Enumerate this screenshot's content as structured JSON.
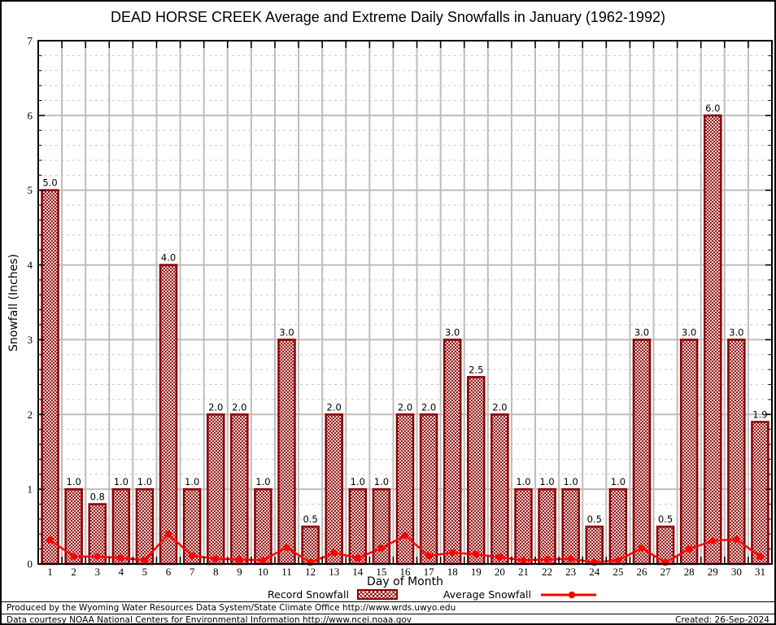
{
  "title": "DEAD HORSE CREEK Average and Extreme Daily Snowfalls in January (1962-1992)",
  "chart_data": {
    "type": "bar",
    "title": "DEAD HORSE CREEK Average and Extreme Daily Snowfalls in January (1962-1992)",
    "xlabel": "Day of Month",
    "ylabel": "Snowfall (Inches)",
    "ylim": [
      0,
      7
    ],
    "yticks": [
      0,
      1,
      2,
      3,
      4,
      5,
      6,
      7
    ],
    "y_minor_step": 0.2,
    "grid": true,
    "legend_position": "bottom",
    "categories": [
      1,
      2,
      3,
      4,
      5,
      6,
      7,
      8,
      9,
      10,
      11,
      12,
      13,
      14,
      15,
      16,
      17,
      18,
      19,
      20,
      21,
      22,
      23,
      24,
      25,
      26,
      27,
      28,
      29,
      30,
      31
    ],
    "series": [
      {
        "name": "Record Snowfall",
        "type": "bar",
        "color": "#8b0000",
        "values": [
          5.0,
          1.0,
          0.8,
          1.0,
          1.0,
          4.0,
          1.0,
          2.0,
          2.0,
          1.0,
          3.0,
          0.5,
          2.0,
          1.0,
          1.0,
          2.0,
          2.0,
          3.0,
          2.5,
          2.0,
          1.0,
          1.0,
          1.0,
          0.5,
          1.0,
          3.0,
          0.5,
          3.0,
          6.0,
          3.0,
          1.9
        ]
      },
      {
        "name": "Average Snowfall",
        "type": "line",
        "color": "#ff0000",
        "markers": true,
        "values": [
          0.32,
          0.1,
          0.1,
          0.08,
          0.05,
          0.4,
          0.11,
          0.07,
          0.06,
          0.05,
          0.22,
          0.02,
          0.15,
          0.08,
          0.21,
          0.38,
          0.11,
          0.15,
          0.13,
          0.09,
          0.05,
          0.06,
          0.07,
          0.02,
          0.05,
          0.21,
          0.02,
          0.2,
          0.31,
          0.33,
          0.1
        ]
      }
    ],
    "colors": {
      "bar": "#8b0000",
      "line": "#ff0000",
      "grid_major": "#bdbdbd",
      "grid_minor": "#c9c9c9",
      "frame": "#000000"
    }
  },
  "legend": {
    "record_label": "Record Snowfall",
    "average_label": "Average Snowfall"
  },
  "footer": {
    "line1": "Produced by the Wyoming Water Resources Data System/State Climate Office http://www.wrds.uwyo.edu",
    "line2": "Data courtesy NOAA National Centers for Environmental Information http://www.ncei.noaa.gov",
    "created": "Created: 26-Sep-2024"
  }
}
